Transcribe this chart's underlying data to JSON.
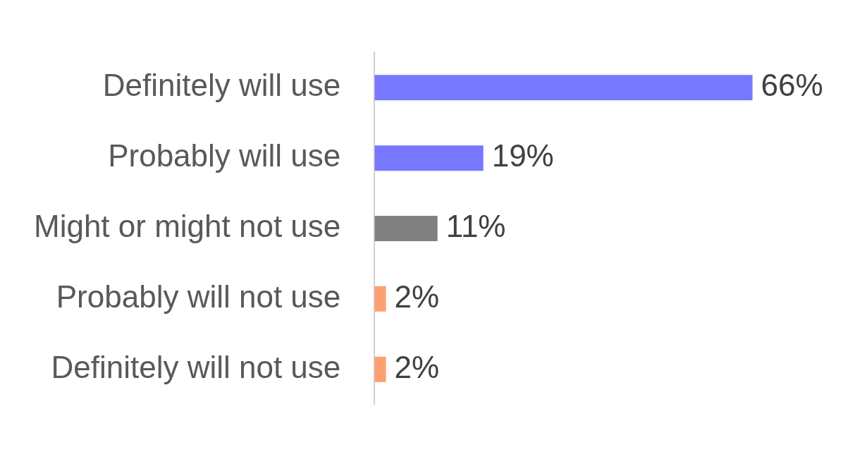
{
  "chart_data": {
    "type": "bar",
    "orientation": "horizontal",
    "categories": [
      "Definitely will use",
      "Probably will use",
      "Might or might not use",
      "Probably will not use",
      "Definitely will not use"
    ],
    "values": [
      66,
      19,
      11,
      2,
      2
    ],
    "colors": [
      "#7777ff",
      "#7777ff",
      "#808080",
      "#ffa072",
      "#ffa072"
    ],
    "value_labels": [
      "66%",
      "19%",
      "11%",
      "2%",
      "2%"
    ],
    "tick_labels": "y",
    "grid": false,
    "legend": false
  }
}
